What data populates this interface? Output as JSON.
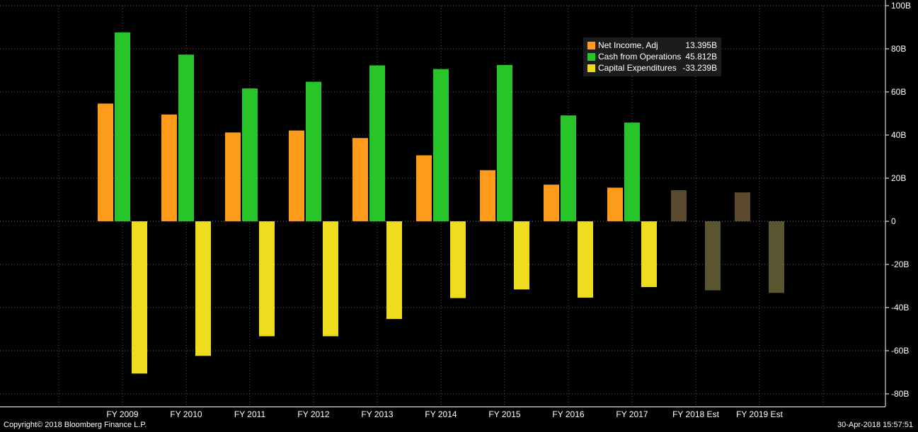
{
  "chart_data": {
    "type": "bar",
    "categories": [
      "FY 2009",
      "FY 2010",
      "FY 2011",
      "FY 2012",
      "FY 2013",
      "FY 2014",
      "FY 2015",
      "FY 2016",
      "FY 2017",
      "FY 2018 Est",
      "FY 2019 Est"
    ],
    "series": [
      {
        "name": "Net Income, Adj",
        "legend_value": "13.395B",
        "color": "#ff9b1a",
        "estimate_color": "#5c4a2e",
        "values": [
          54.6,
          49.5,
          41.2,
          42.1,
          38.6,
          30.6,
          23.7,
          17.0,
          15.6,
          14.4,
          13.4
        ]
      },
      {
        "name": "Cash from Operations",
        "legend_value": "45.812B",
        "color": "#27c42a",
        "estimate_color": "#2e4a2e",
        "values": [
          87.6,
          77.3,
          61.6,
          64.7,
          72.3,
          70.6,
          72.5,
          49.1,
          45.8,
          null,
          null
        ]
      },
      {
        "name": "Capital Expenditures",
        "legend_value": "-33.239B",
        "color": "#eedc1f",
        "estimate_color": "#5a5630",
        "values": [
          -70.6,
          -62.4,
          -53.3,
          -53.3,
          -45.3,
          -35.6,
          -31.6,
          -35.4,
          -30.5,
          -32.0,
          -33.2
        ]
      }
    ],
    "estimate_categories": [
      "FY 2018 Est",
      "FY 2019 Est"
    ],
    "ylim": [
      -80,
      100
    ],
    "yticks": [
      100,
      80,
      60,
      40,
      20,
      0,
      -20,
      -40,
      -60,
      -80
    ],
    "ytick_labels": [
      "100B",
      "80B",
      "60B",
      "40B",
      "20B",
      "0",
      "-20B",
      "-40B",
      "-60B",
      "-80B"
    ],
    "y_axis_position": "right",
    "grid": true,
    "legend_position": "top-right"
  },
  "footer": {
    "copyright": "Copyright© 2018 Bloomberg Finance L.P.",
    "timestamp": "30-Apr-2018 15:57:51"
  }
}
